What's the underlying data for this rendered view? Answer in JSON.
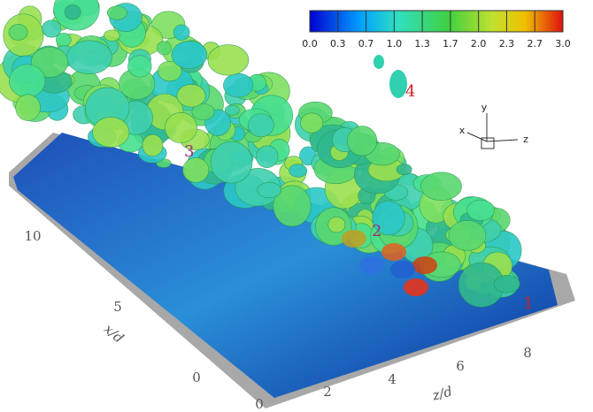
{
  "colorbar": {
    "ticks": [
      "0.0",
      "0.3",
      "0.7",
      "1.0",
      "1.3",
      "1.7",
      "2.0",
      "2.3",
      "2.7",
      "3.0"
    ]
  },
  "axes": {
    "x_label": "x/d",
    "z_label": "z/d",
    "x_ticks": [
      "0",
      "5",
      "10"
    ],
    "z_ticks": [
      "0",
      "2",
      "4",
      "6",
      "8"
    ]
  },
  "triad": {
    "y": "y",
    "x": "x",
    "z": "z"
  },
  "annotations": [
    "1",
    "2",
    "3",
    "4"
  ]
}
